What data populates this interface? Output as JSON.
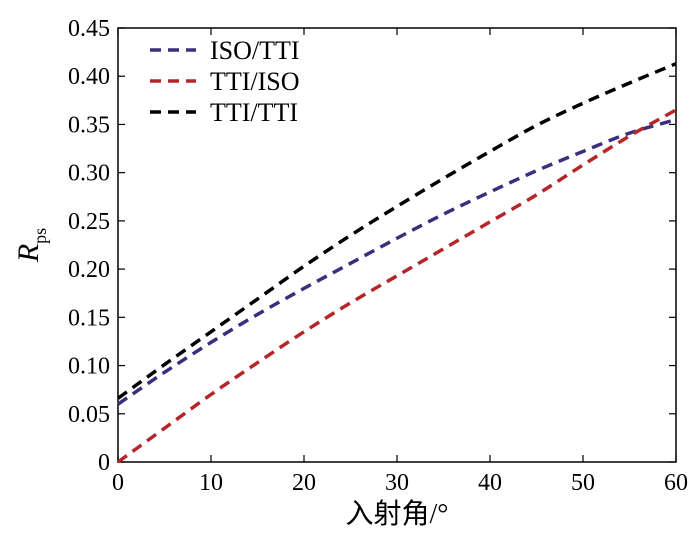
{
  "chart_data": {
    "type": "line",
    "title": "",
    "xlabel": "入射角/°",
    "ylabel_main": "R",
    "ylabel_sub": "ps",
    "xlim": [
      0,
      60
    ],
    "ylim": [
      0,
      0.45
    ],
    "xticks": [
      0,
      10,
      20,
      30,
      40,
      50,
      60
    ],
    "xtick_labels": [
      "0",
      "10",
      "20",
      "30",
      "40",
      "50",
      "60"
    ],
    "yticks": [
      0,
      0.05,
      0.1,
      0.15,
      0.2,
      0.25,
      0.3,
      0.35,
      0.4,
      0.45
    ],
    "ytick_labels": [
      "0",
      "0.05",
      "0.10",
      "0.15",
      "0.20",
      "0.25",
      "0.30",
      "0.35",
      "0.40",
      "0.45"
    ],
    "grid": false,
    "legend_position": "top-left",
    "x": [
      0,
      5,
      10,
      15,
      20,
      25,
      30,
      35,
      40,
      45,
      50,
      55,
      60
    ],
    "series": [
      {
        "name": "ISO/TTI",
        "color": "#3a2f7e",
        "values": [
          0.06,
          0.093,
          0.124,
          0.153,
          0.18,
          0.206,
          0.232,
          0.257,
          0.28,
          0.302,
          0.322,
          0.341,
          0.355
        ]
      },
      {
        "name": "TTI/ISO",
        "color": "#b5262a",
        "values": [
          0.0,
          0.035,
          0.07,
          0.103,
          0.135,
          0.165,
          0.193,
          0.221,
          0.249,
          0.277,
          0.308,
          0.338,
          0.365
        ]
      },
      {
        "name": "TTI/TTI",
        "color": "#000000",
        "values": [
          0.066,
          0.101,
          0.135,
          0.169,
          0.203,
          0.235,
          0.265,
          0.294,
          0.322,
          0.349,
          0.372,
          0.393,
          0.413
        ]
      }
    ]
  }
}
